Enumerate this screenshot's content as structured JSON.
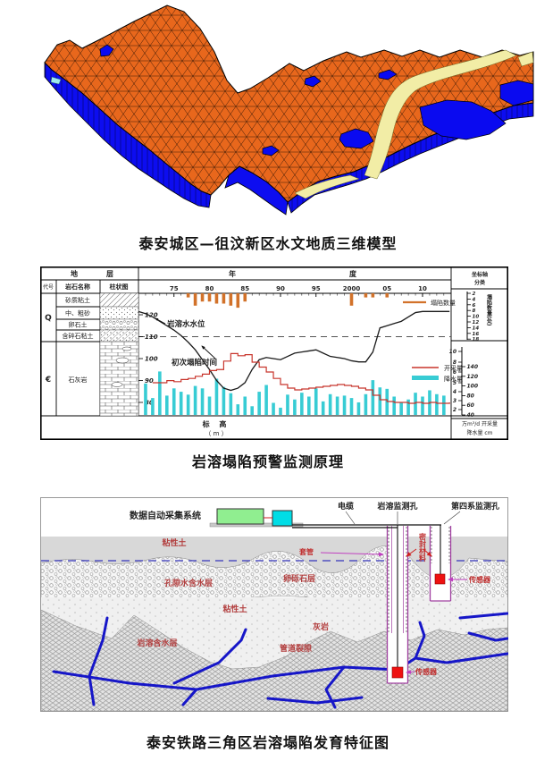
{
  "figure1": {
    "caption": "泰安城区—徂汶新区水文地质三维模型",
    "colors": {
      "surface": "#e8671c",
      "side": "#0d0df0",
      "ribbon": "#f2eda6",
      "lake": "#0a0af0"
    }
  },
  "figure2": {
    "caption": "岩溶塌陷预警监测原理",
    "table": {
      "strata_hdr_l": "地",
      "strata_hdr_r": "层",
      "year_hdr_l": "年",
      "year_hdr_r": "度",
      "col_code": "代号",
      "col_rock": "岩石名称",
      "col_column": "柱状图",
      "era_q": "Q",
      "era_c": "€",
      "rocks_q": [
        "砂质粘土",
        "中、粗砂",
        "卵石土",
        "含碎石粘土"
      ],
      "rock_c": "石灰岩",
      "elev_label": "标 高",
      "elev_unit": "（ m ）"
    },
    "annotations": {
      "water_level": "岩溶水水位",
      "first_collapse": "初次塌陷时间"
    },
    "legend": {
      "collapse": "塌陷数量",
      "extraction": "开采量",
      "precipitation": "降水量"
    },
    "right_axis": {
      "title": [
        "坐标轴",
        "分类"
      ],
      "collapse_label": "塌陷数量(处)",
      "collapse_ticks": [
        2,
        4,
        6,
        8,
        10,
        12,
        14,
        16,
        18
      ],
      "extraction_ticks": [
        10,
        8,
        6,
        5,
        4,
        3,
        2
      ],
      "precip_ticks": [
        140,
        120,
        100,
        80,
        60,
        40
      ],
      "unit_line1": "万m³/d 开采量",
      "unit_line2": "降水量 cm"
    },
    "x_ticks": [
      {
        "label": "75",
        "year": 1975
      },
      {
        "label": "80",
        "year": 1980
      },
      {
        "label": "85",
        "year": 1985
      },
      {
        "label": "90",
        "year": 1990
      },
      {
        "label": "95",
        "year": 1995
      },
      {
        "label": "2000",
        "year": 2000
      },
      {
        "label": "05",
        "year": 2005
      },
      {
        "label": "10",
        "year": 2010
      }
    ],
    "y_ticks": [
      120,
      110,
      100,
      90,
      80
    ],
    "chart_data": {
      "type": "composite bar+line",
      "x_range": [
        1970,
        2014
      ],
      "elevation_range_m": [
        78,
        124
      ],
      "series": [
        {
          "name": "塌陷数量",
          "type": "bar",
          "unit": "处",
          "color": "#d2722a",
          "points": [
            [
              1977,
              2
            ],
            [
              1978,
              6
            ],
            [
              1979,
              4
            ],
            [
              1980,
              4
            ],
            [
              1981,
              5
            ],
            [
              1982,
              5
            ],
            [
              1983,
              6
            ],
            [
              1984,
              7
            ],
            [
              1985,
              4
            ],
            [
              2000,
              6
            ],
            [
              2002,
              2
            ],
            [
              2003,
              2
            ],
            [
              2005,
              2
            ]
          ]
        },
        {
          "name": "降水量",
          "type": "bar",
          "unit": "cm",
          "color": "#38ccd4",
          "start_year": 1971,
          "values": [
            105,
            75,
            130,
            80,
            95,
            88,
            82,
            100,
            95,
            78,
            115,
            98,
            85,
            62,
            78,
            58,
            88,
            102,
            65,
            55,
            82,
            72,
            86,
            78,
            95,
            68,
            83,
            78,
            80,
            75,
            66,
            83,
            112,
            97,
            94,
            78,
            65,
            72,
            86,
            78,
            91,
            83,
            80
          ]
        },
        {
          "name": "岩溶水水位",
          "type": "line",
          "unit": "m",
          "color": "#1a1a1a",
          "points": [
            [
              1970,
              121.5
            ],
            [
              1971,
              120.5
            ],
            [
              1972,
              119
            ],
            [
              1973,
              117
            ],
            [
              1974,
              115
            ],
            [
              1975,
              113
            ],
            [
              1976,
              110.5
            ],
            [
              1977,
              107.5
            ],
            [
              1978,
              104
            ],
            [
              1979,
              99.5
            ],
            [
              1980,
              95
            ],
            [
              1981,
              90
            ],
            [
              1982,
              86.5
            ],
            [
              1983,
              85.5
            ],
            [
              1984,
              86.5
            ],
            [
              1985,
              89
            ],
            [
              1986,
              95
            ],
            [
              1987,
              99.5
            ],
            [
              1988,
              100.5
            ],
            [
              1989,
              100
            ],
            [
              1990,
              99.5
            ],
            [
              1991,
              101
            ],
            [
              1992,
              102.5
            ],
            [
              1993,
              103
            ],
            [
              1994,
              103.5
            ],
            [
              1995,
              104
            ],
            [
              1996,
              102.5
            ],
            [
              1997,
              101
            ],
            [
              1998,
              100.5
            ],
            [
              1999,
              100
            ],
            [
              2000,
              99
            ],
            [
              2001,
              98.5
            ],
            [
              2002,
              98.5
            ],
            [
              2003,
              103
            ],
            [
              2004,
              114
            ],
            [
              2005,
              115
            ],
            [
              2006,
              116
            ],
            [
              2007,
              117
            ],
            [
              2008,
              119
            ],
            [
              2009,
              121
            ],
            [
              2010,
              121.5
            ],
            [
              2011,
              121.5
            ],
            [
              2012,
              121.5
            ],
            [
              2013.8,
              121.5
            ]
          ]
        },
        {
          "name": "开采量",
          "type": "step-line",
          "unit": "万m³/d",
          "color": "#c8352c",
          "points": [
            [
              1972,
              5.0
            ],
            [
              1973,
              5.0
            ],
            [
              1974,
              5.2
            ],
            [
              1975,
              5.1
            ],
            [
              1976,
              5.3
            ],
            [
              1977,
              5.4
            ],
            [
              1978,
              5.6
            ],
            [
              1979,
              5.8
            ],
            [
              1980,
              6.3
            ],
            [
              1981,
              6.5
            ],
            [
              1982,
              8.2
            ],
            [
              1983,
              9.6
            ],
            [
              1984,
              9.2
            ],
            [
              1985,
              9.4
            ],
            [
              1986,
              8.0
            ],
            [
              1987,
              7.0
            ],
            [
              1988,
              6.0
            ],
            [
              1989,
              5.4
            ],
            [
              1990,
              4.8
            ],
            [
              1991,
              4.4
            ],
            [
              1992,
              4.2
            ],
            [
              1993,
              4.3
            ],
            [
              1994,
              4.4
            ],
            [
              1995,
              4.5
            ],
            [
              1996,
              4.6
            ],
            [
              1997,
              4.7
            ],
            [
              1998,
              4.8
            ],
            [
              1999,
              4.7
            ],
            [
              2000,
              4.6
            ],
            [
              2001,
              4.4
            ],
            [
              2002,
              4.2
            ],
            [
              2003,
              3.6
            ],
            [
              2004,
              3.1
            ],
            [
              2005,
              2.9
            ],
            [
              2006,
              2.8
            ],
            [
              2007,
              2.8
            ],
            [
              2008,
              2.7
            ],
            [
              2009,
              2.8
            ],
            [
              2010,
              2.7
            ],
            [
              2011,
              2.8
            ],
            [
              2012,
              2.7
            ],
            [
              2013.8,
              2.8
            ]
          ]
        }
      ],
      "dashed_reference_level_m": 110
    }
  },
  "figure3": {
    "caption": "泰安铁路三角区岩溶塌陷发育特征图",
    "labels": {
      "system": "数据自动采集系统",
      "cable": "电缆",
      "karst_hole": "岩溶监测孔",
      "quaternary_hole": "第四系监测孔",
      "casing": "套管",
      "seal": "密封材料",
      "sensor_deep": "传感器",
      "sensor_shallow": "传感器",
      "clay_top": "粘性土",
      "pore_aquifer": "孔隙水含水层",
      "gravel": "卵砾石层",
      "clay_mid": "粘性土",
      "limestone": "灰岩",
      "karst_aquifer": "岩溶含水层",
      "conduit": "管道裂隙"
    }
  }
}
